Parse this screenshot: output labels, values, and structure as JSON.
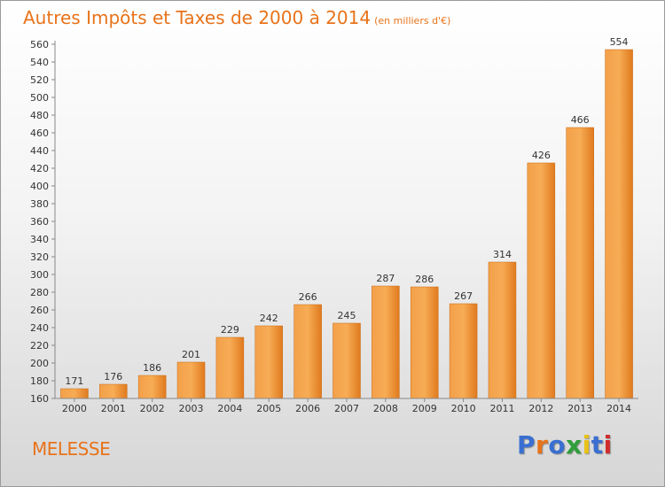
{
  "title": "Autres Impôts et Taxes de 2000 à 2014",
  "unit": "(en milliers d'€)",
  "place": "MELESSE",
  "logo": {
    "text": "Proxiti",
    "colors": [
      "#3a6fd1",
      "#e8731a",
      "#3a6fd1",
      "#2e9e3a",
      "#e8c21a",
      "#3a6fd1",
      "#d12c2c"
    ]
  },
  "colors": {
    "accent": "#e8731a",
    "bar_light": "#f7a84e",
    "bar_dark": "#e07a1e"
  },
  "chart_data": {
    "type": "bar",
    "categories": [
      "2000",
      "2001",
      "2002",
      "2003",
      "2004",
      "2005",
      "2006",
      "2007",
      "2008",
      "2009",
      "2010",
      "2011",
      "2012",
      "2013",
      "2014"
    ],
    "values": [
      171,
      176,
      186,
      201,
      229,
      242,
      266,
      245,
      287,
      286,
      267,
      314,
      426,
      466,
      554
    ],
    "title": "Autres Impôts et Taxes de 2000 à 2014",
    "ylabel": "",
    "xlabel": "",
    "ylim": [
      160,
      560
    ],
    "ytick_step": 20,
    "grid": false,
    "data_labels": true
  }
}
